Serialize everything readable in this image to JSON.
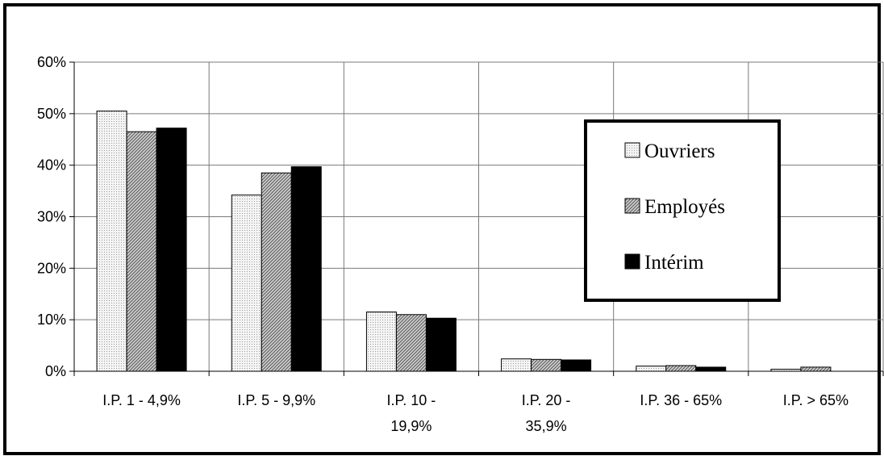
{
  "chart_data": {
    "type": "bar",
    "categories": [
      [
        "I.P. 1 - 4,9%"
      ],
      [
        "I.P. 5 - 9,9%"
      ],
      [
        "I.P. 10 -",
        "19,9%"
      ],
      [
        "I.P. 20 -",
        "35,9%"
      ],
      [
        "I.P. 36 - 65%"
      ],
      [
        "I.P. > 65%"
      ]
    ],
    "series": [
      {
        "name": "Ouvriers",
        "values": [
          50.5,
          34.2,
          11.5,
          2.4,
          1.0,
          0.4
        ],
        "color": "#ececec",
        "pattern": "dots"
      },
      {
        "name": "Employés",
        "values": [
          46.5,
          38.5,
          11.0,
          2.3,
          1.1,
          0.8
        ],
        "color": "#b0b0b0",
        "pattern": "hatch"
      },
      {
        "name": "Intérim",
        "values": [
          47.2,
          39.7,
          10.3,
          2.2,
          0.8,
          0.0
        ],
        "color": "#000000",
        "pattern": "solid"
      }
    ],
    "y_ticks": [
      "0%",
      "10%",
      "20%",
      "30%",
      "40%",
      "50%",
      "60%"
    ],
    "ylim": [
      0,
      60
    ],
    "grid": true,
    "legend_position": "right"
  }
}
